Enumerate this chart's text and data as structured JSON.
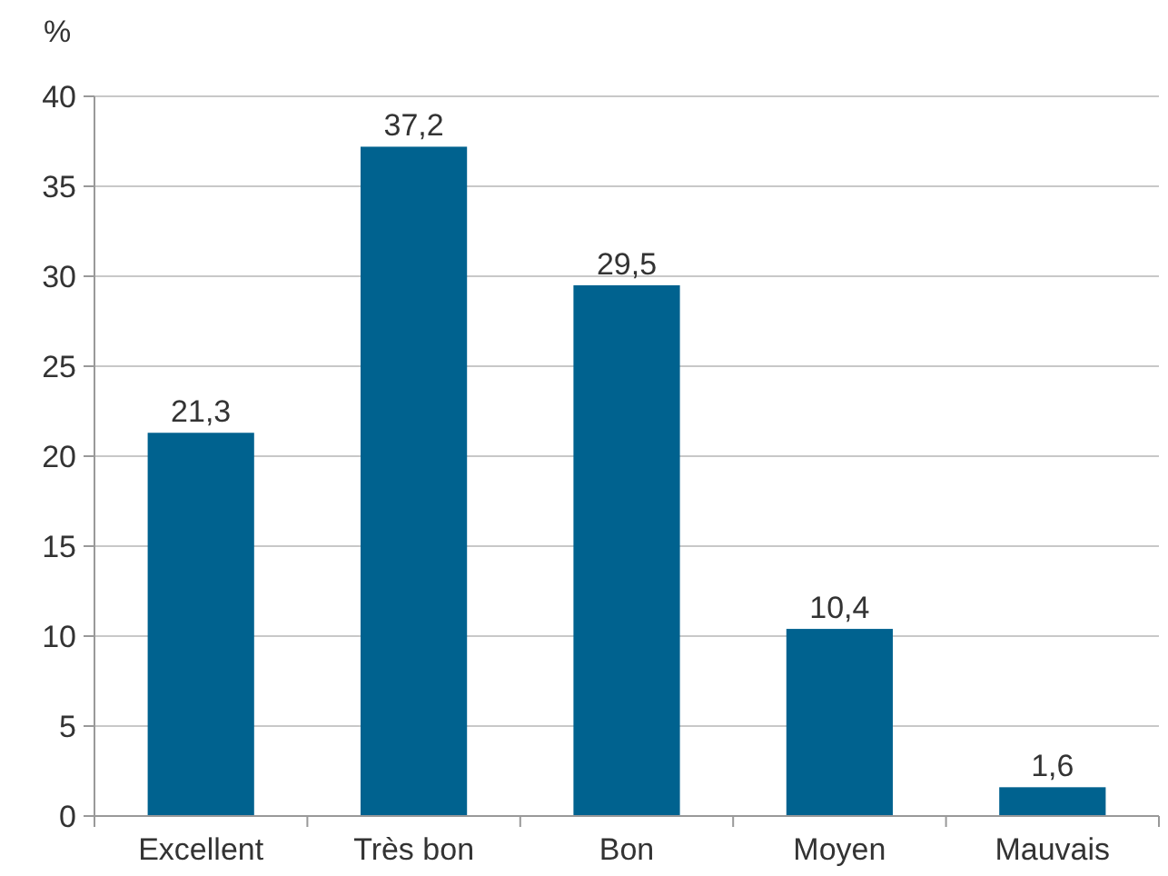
{
  "chart_data": {
    "type": "bar",
    "ylabel": "%",
    "categories": [
      "Excellent",
      "Très bon",
      "Bon",
      "Moyen",
      "Mauvais"
    ],
    "values": [
      21.3,
      37.2,
      29.5,
      10.4,
      1.6
    ],
    "value_labels": [
      "21,3",
      "37,2",
      "29,5",
      "10,4",
      "1,6"
    ],
    "color": "#00628f",
    "ylim": [
      0,
      40
    ],
    "yticks": [
      0,
      5,
      10,
      15,
      20,
      25,
      30,
      35,
      40
    ],
    "grid": "y"
  }
}
